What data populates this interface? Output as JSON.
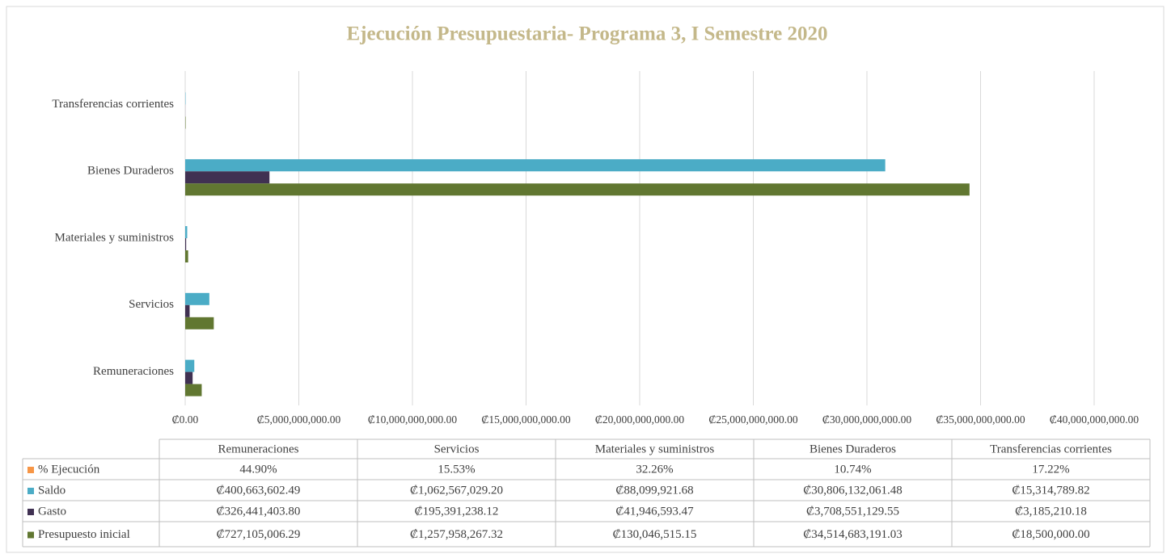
{
  "chart_data": {
    "type": "bar",
    "orientation": "horizontal",
    "title": "Ejecución Presupuestaria-  Programa 3,  I Semestre 2020",
    "categories": [
      "Remuneraciones",
      "Servicios",
      "Materiales y suministros",
      "Bienes Duraderos",
      "Transferencias corrientes"
    ],
    "series": [
      {
        "name": "% Ejecución",
        "color": "#f79646",
        "values": [
          44.9,
          15.53,
          32.26,
          10.74,
          17.22
        ],
        "value_labels": [
          "44.90%",
          "15.53%",
          "32.26%",
          "10.74%",
          "17.22%"
        ]
      },
      {
        "name": "Saldo",
        "color": "#4bacc6",
        "values": [
          400663602.49,
          1062567029.2,
          88099921.68,
          30806132061.48,
          15314789.82
        ],
        "value_labels": [
          "₡400,663,602.49",
          "₡1,062,567,029.20",
          "₡88,099,921.68",
          "₡30,806,132,061.48",
          "₡15,314,789.82"
        ]
      },
      {
        "name": "Gasto",
        "color": "#403152",
        "values": [
          326441403.8,
          195391238.12,
          41946593.47,
          3708551129.55,
          3185210.18
        ],
        "value_labels": [
          "₡326,441,403.80",
          "₡195,391,238.12",
          "₡41,946,593.47",
          "₡3,708,551,129.55",
          "₡3,185,210.18"
        ]
      },
      {
        "name": "Presupuesto inicial",
        "color": "#617731",
        "values": [
          727105006.29,
          1257958267.32,
          130046515.15,
          34514683191.03,
          18500000
        ],
        "value_labels": [
          "₡727,105,006.29",
          "₡1,257,958,267.32",
          "₡130,046,515.15",
          "₡34,514,683,191.03",
          "₡18,500,000.00"
        ]
      }
    ],
    "xlim": [
      0,
      40000000000
    ],
    "xticks": [
      {
        "value": 0,
        "label": "₡0.00"
      },
      {
        "value": 5000000000,
        "label": "₡5,000,000,000.00"
      },
      {
        "value": 10000000000,
        "label": "₡10,000,000,000.00"
      },
      {
        "value": 15000000000,
        "label": "₡15,000,000,000.00"
      },
      {
        "value": 20000000000,
        "label": "₡20,000,000,000.00"
      },
      {
        "value": 25000000000,
        "label": "₡25,000,000,000.00"
      },
      {
        "value": 30000000000,
        "label": "₡30,000,000,000.00"
      },
      {
        "value": 35000000000,
        "label": "₡35,000,000,000.00"
      },
      {
        "value": 40000000000,
        "label": "₡40,000,000,000.00"
      }
    ],
    "grid": true
  }
}
